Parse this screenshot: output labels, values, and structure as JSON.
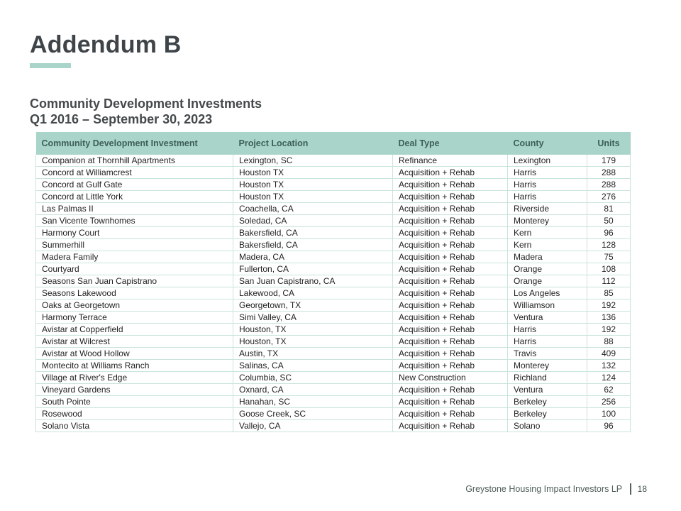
{
  "slide": {
    "title": "Addendum B",
    "subtitle_line1": "Community Development Investments",
    "subtitle_line2": "Q1 2016 – September 30, 2023",
    "footer": {
      "company": "Greystone Housing Impact Investors LP",
      "page_number": "18"
    },
    "colors": {
      "accent_mint": "#a9d4c9",
      "header_bg": "#a9d4c9",
      "header_text": "#3c5f58",
      "title_text": "#3e4448",
      "row_border": "#c9e4dc",
      "body_text": "#1f1f1f",
      "footer_text": "#4e5e5a"
    }
  },
  "table": {
    "columns": [
      "Community Development Investment",
      "Project Location",
      "Deal Type",
      "County",
      "Units"
    ],
    "rows": [
      [
        "Companion at Thornhill Apartments",
        "Lexington, SC",
        "Refinance",
        "Lexington",
        "179"
      ],
      [
        "Concord at Williamcrest",
        "Houston TX",
        "Acquisition + Rehab",
        "Harris",
        "288"
      ],
      [
        "Concord at Gulf Gate",
        "Houston TX",
        "Acquisition + Rehab",
        "Harris",
        "288"
      ],
      [
        "Concord at Little York",
        "Houston TX",
        "Acquisition + Rehab",
        "Harris",
        "276"
      ],
      [
        "Las Palmas II",
        "Coachella, CA",
        "Acquisition + Rehab",
        "Riverside",
        "81"
      ],
      [
        "San Vicente Townhomes",
        "Soledad, CA",
        "Acquisition + Rehab",
        "Monterey",
        "50"
      ],
      [
        "Harmony Court",
        "Bakersfield, CA",
        "Acquisition + Rehab",
        "Kern",
        "96"
      ],
      [
        "Summerhill",
        "Bakersfield, CA",
        "Acquisition + Rehab",
        "Kern",
        "128"
      ],
      [
        "Madera Family",
        "Madera, CA",
        "Acquisition + Rehab",
        "Madera",
        "75"
      ],
      [
        "Courtyard",
        "Fullerton, CA",
        "Acquisition + Rehab",
        "Orange",
        "108"
      ],
      [
        "Seasons San Juan Capistrano",
        "San Juan Capistrano, CA",
        "Acquisition + Rehab",
        "Orange",
        "112"
      ],
      [
        "Seasons Lakewood",
        "Lakewood, CA",
        "Acquisition + Rehab",
        "Los Angeles",
        "85"
      ],
      [
        "Oaks at Georgetown",
        "Georgetown, TX",
        "Acquisition + Rehab",
        "Williamson",
        "192"
      ],
      [
        "Harmony Terrace",
        "Simi Valley, CA",
        "Acquisition + Rehab",
        "Ventura",
        "136"
      ],
      [
        "Avistar at Copperfield",
        "Houston, TX",
        "Acquisition + Rehab",
        "Harris",
        "192"
      ],
      [
        "Avistar at Wilcrest",
        "Houston, TX",
        "Acquisition + Rehab",
        "Harris",
        "88"
      ],
      [
        "Avistar at Wood Hollow",
        "Austin, TX",
        "Acquisition + Rehab",
        "Travis",
        "409"
      ],
      [
        "Montecito at Williams Ranch",
        "Salinas, CA",
        "Acquisition + Rehab",
        "Monterey",
        "132"
      ],
      [
        "Village at River's Edge",
        "Columbia, SC",
        "New Construction",
        "Richland",
        "124"
      ],
      [
        "Vineyard Gardens",
        "Oxnard, CA",
        "Acquisition + Rehab",
        "Ventura",
        "62"
      ],
      [
        "South Pointe",
        "Hanahan, SC",
        "Acquisition + Rehab",
        "Berkeley",
        "256"
      ],
      [
        "Rosewood",
        "Goose Creek, SC",
        "Acquisition + Rehab",
        "Berkeley",
        "100"
      ],
      [
        "Solano Vista",
        "Vallejo, CA",
        "Acquisition + Rehab",
        "Solano",
        "96"
      ]
    ]
  }
}
